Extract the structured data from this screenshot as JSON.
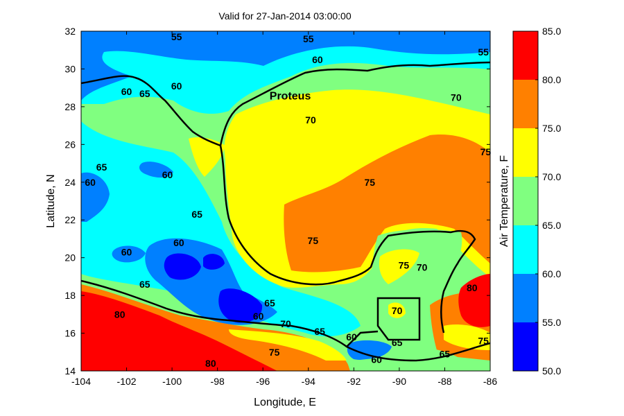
{
  "chart_data": {
    "type": "heatmap",
    "title": "Valid for 27-Jan-2014 03:00:00",
    "xlabel": "Longitude, E",
    "ylabel": "Latitude, N",
    "xlim": [
      -104,
      -86
    ],
    "ylim": [
      14,
      32
    ],
    "xticks": [
      "-104",
      "-102",
      "-100",
      "-98",
      "-96",
      "-94",
      "-92",
      "-90",
      "-88",
      "-86"
    ],
    "yticks": [
      "14",
      "16",
      "18",
      "20",
      "22",
      "24",
      "26",
      "28",
      "30",
      "32"
    ],
    "colorbar": {
      "label": "Air Temperature, F",
      "levels": [
        50,
        55,
        60,
        65,
        70,
        75,
        80,
        85
      ],
      "tick_labels": [
        "50.0",
        "55.0",
        "60.0",
        "65.0",
        "70.0",
        "75.0",
        "80.0",
        "85.0"
      ],
      "colors": [
        "#0000ff",
        "#0080ff",
        "#00ffff",
        "#80ff80",
        "#ffff00",
        "#ff8000",
        "#ff0000"
      ]
    },
    "station": {
      "name": "Proteus",
      "lon": -94.8,
      "lat": 28.6
    },
    "contour_labels": [
      {
        "text": "55",
        "lon": -99.8,
        "lat": 31.7
      },
      {
        "text": "55",
        "lon": -94.0,
        "lat": 31.6
      },
      {
        "text": "55",
        "lon": -86.3,
        "lat": 30.9
      },
      {
        "text": "60",
        "lon": -93.6,
        "lat": 30.5
      },
      {
        "text": "60",
        "lon": -102.0,
        "lat": 28.8
      },
      {
        "text": "60",
        "lon": -99.8,
        "lat": 29.1
      },
      {
        "text": "60",
        "lon": -100.2,
        "lat": 24.4
      },
      {
        "text": "60",
        "lon": -103.6,
        "lat": 24.0
      },
      {
        "text": "60",
        "lon": -102.0,
        "lat": 20.3
      },
      {
        "text": "60",
        "lon": -99.7,
        "lat": 20.8
      },
      {
        "text": "60",
        "lon": -96.2,
        "lat": 16.9
      },
      {
        "text": "60",
        "lon": -92.1,
        "lat": 15.8
      },
      {
        "text": "60",
        "lon": -91.0,
        "lat": 14.6
      },
      {
        "text": "65",
        "lon": -101.2,
        "lat": 28.7
      },
      {
        "text": "65",
        "lon": -103.1,
        "lat": 24.8
      },
      {
        "text": "65",
        "lon": -98.9,
        "lat": 22.3
      },
      {
        "text": "65",
        "lon": -101.2,
        "lat": 18.6
      },
      {
        "text": "65",
        "lon": -95.7,
        "lat": 17.6
      },
      {
        "text": "65",
        "lon": -93.5,
        "lat": 16.1
      },
      {
        "text": "65",
        "lon": -90.1,
        "lat": 15.5
      },
      {
        "text": "65",
        "lon": -88.0,
        "lat": 14.9
      },
      {
        "text": "70",
        "lon": -93.9,
        "lat": 27.3
      },
      {
        "text": "70",
        "lon": -87.5,
        "lat": 28.5
      },
      {
        "text": "70",
        "lon": -95.0,
        "lat": 16.5
      },
      {
        "text": "70",
        "lon": -90.1,
        "lat": 17.2
      },
      {
        "text": "70",
        "lon": -89.0,
        "lat": 19.5
      },
      {
        "text": "75",
        "lon": -91.3,
        "lat": 24.0
      },
      {
        "text": "75",
        "lon": -93.8,
        "lat": 20.9
      },
      {
        "text": "75",
        "lon": -89.8,
        "lat": 19.6
      },
      {
        "text": "75",
        "lon": -95.5,
        "lat": 15.0
      },
      {
        "text": "75",
        "lon": -86.2,
        "lat": 25.6
      },
      {
        "text": "75",
        "lon": -86.3,
        "lat": 15.6
      },
      {
        "text": "80",
        "lon": -102.3,
        "lat": 17.0
      },
      {
        "text": "80",
        "lon": -98.3,
        "lat": 14.4
      },
      {
        "text": "80",
        "lon": -86.8,
        "lat": 18.4
      }
    ]
  }
}
